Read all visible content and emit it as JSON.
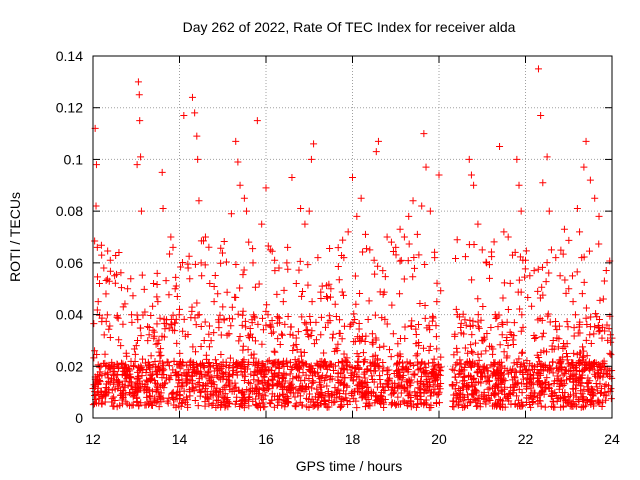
{
  "chart_data": {
    "type": "scatter",
    "title": "Day 262 of 2022, Rate Of TEC Index for receiver alda",
    "xlabel": "GPS time / hours",
    "ylabel": "ROTI / TECUs",
    "xlim": [
      12,
      24
    ],
    "ylim": [
      0,
      0.14
    ],
    "xticks": [
      12,
      14,
      16,
      18,
      20,
      22,
      24
    ],
    "xtick_labels": [
      "12",
      "14",
      "16",
      "18",
      "20",
      "22",
      "24"
    ],
    "yticks": [
      0,
      0.02,
      0.04,
      0.06,
      0.08,
      0.1,
      0.12,
      0.14
    ],
    "ytick_labels": [
      "0",
      "0.02",
      "0.04",
      "0.06",
      "0.08",
      "0.1",
      "0.12",
      "0.14"
    ],
    "grid": true,
    "marker": "+",
    "color": "#ff0000",
    "gap": [
      20.05,
      20.3
    ],
    "points": [
      [
        12.05,
        0.112
      ],
      [
        12.08,
        0.098
      ],
      [
        12.07,
        0.082
      ],
      [
        12.1,
        0.066
      ],
      [
        12.15,
        0.052
      ],
      [
        12.12,
        0.045
      ],
      [
        12.2,
        0.063
      ],
      [
        12.25,
        0.058
      ],
      [
        12.3,
        0.048
      ],
      [
        12.4,
        0.061
      ],
      [
        12.5,
        0.055
      ],
      [
        12.6,
        0.064
      ],
      [
        12.7,
        0.043
      ],
      [
        12.8,
        0.05
      ],
      [
        12.9,
        0.037
      ],
      [
        13.0,
        0.028
      ],
      [
        13.05,
        0.13
      ],
      [
        13.07,
        0.125
      ],
      [
        13.08,
        0.115
      ],
      [
        13.1,
        0.101
      ],
      [
        13.02,
        0.098
      ],
      [
        13.12,
        0.08
      ],
      [
        13.2,
        0.041
      ],
      [
        13.3,
        0.035
      ],
      [
        13.4,
        0.052
      ],
      [
        13.5,
        0.045
      ],
      [
        13.6,
        0.095
      ],
      [
        13.62,
        0.081
      ],
      [
        13.7,
        0.038
      ],
      [
        13.8,
        0.07
      ],
      [
        13.85,
        0.066
      ],
      [
        13.9,
        0.05
      ],
      [
        13.95,
        0.047
      ],
      [
        14.0,
        0.042
      ],
      [
        14.1,
        0.117
      ],
      [
        14.2,
        0.058
      ],
      [
        14.3,
        0.124
      ],
      [
        14.35,
        0.118
      ],
      [
        14.4,
        0.109
      ],
      [
        14.42,
        0.1
      ],
      [
        14.45,
        0.084
      ],
      [
        14.5,
        0.06
      ],
      [
        14.6,
        0.07
      ],
      [
        14.7,
        0.052
      ],
      [
        14.8,
        0.045
      ],
      [
        14.9,
        0.038
      ],
      [
        15.0,
        0.043
      ],
      [
        15.1,
        0.032
      ],
      [
        15.2,
        0.079
      ],
      [
        15.3,
        0.107
      ],
      [
        15.35,
        0.099
      ],
      [
        15.4,
        0.09
      ],
      [
        15.5,
        0.085
      ],
      [
        15.55,
        0.08
      ],
      [
        15.6,
        0.068
      ],
      [
        15.7,
        0.06
      ],
      [
        15.8,
        0.115
      ],
      [
        15.9,
        0.075
      ],
      [
        16.0,
        0.089
      ],
      [
        16.1,
        0.065
      ],
      [
        16.2,
        0.061
      ],
      [
        16.3,
        0.058
      ],
      [
        16.4,
        0.045
      ],
      [
        16.5,
        0.066
      ],
      [
        16.6,
        0.093
      ],
      [
        16.7,
        0.052
      ],
      [
        16.8,
        0.081
      ],
      [
        16.9,
        0.075
      ],
      [
        17.0,
        0.08
      ],
      [
        17.05,
        0.1
      ],
      [
        17.1,
        0.106
      ],
      [
        17.2,
        0.062
      ],
      [
        17.3,
        0.051
      ],
      [
        17.4,
        0.047
      ],
      [
        17.5,
        0.05
      ],
      [
        17.6,
        0.044
      ],
      [
        17.7,
        0.038
      ],
      [
        17.8,
        0.062
      ],
      [
        17.9,
        0.072
      ],
      [
        18.0,
        0.093
      ],
      [
        18.1,
        0.078
      ],
      [
        18.2,
        0.085
      ],
      [
        18.3,
        0.071
      ],
      [
        18.4,
        0.065
      ],
      [
        18.5,
        0.061
      ],
      [
        18.55,
        0.103
      ],
      [
        18.6,
        0.107
      ],
      [
        18.7,
        0.057
      ],
      [
        18.8,
        0.07
      ],
      [
        18.9,
        0.068
      ],
      [
        19.0,
        0.066
      ],
      [
        19.1,
        0.073
      ],
      [
        19.2,
        0.07
      ],
      [
        19.3,
        0.078
      ],
      [
        19.4,
        0.084
      ],
      [
        19.5,
        0.071
      ],
      [
        19.6,
        0.082
      ],
      [
        19.65,
        0.11
      ],
      [
        19.7,
        0.097
      ],
      [
        19.8,
        0.08
      ],
      [
        19.9,
        0.062
      ],
      [
        19.95,
        0.045
      ],
      [
        20.0,
        0.094
      ],
      [
        20.4,
        0.042
      ],
      [
        20.5,
        0.035
      ],
      [
        20.6,
        0.038
      ],
      [
        20.7,
        0.1
      ],
      [
        20.75,
        0.094
      ],
      [
        20.8,
        0.09
      ],
      [
        20.9,
        0.075
      ],
      [
        21.0,
        0.065
      ],
      [
        21.1,
        0.06
      ],
      [
        21.2,
        0.035
      ],
      [
        21.3,
        0.04
      ],
      [
        21.4,
        0.105
      ],
      [
        21.5,
        0.072
      ],
      [
        21.6,
        0.07
      ],
      [
        21.7,
        0.063
      ],
      [
        21.8,
        0.1
      ],
      [
        21.85,
        0.09
      ],
      [
        21.9,
        0.08
      ],
      [
        22.0,
        0.061
      ],
      [
        22.1,
        0.055
      ],
      [
        22.2,
        0.057
      ],
      [
        22.3,
        0.135
      ],
      [
        22.35,
        0.117
      ],
      [
        22.4,
        0.091
      ],
      [
        22.5,
        0.101
      ],
      [
        22.55,
        0.08
      ],
      [
        22.6,
        0.065
      ],
      [
        22.7,
        0.062
      ],
      [
        22.8,
        0.055
      ],
      [
        22.9,
        0.073
      ],
      [
        23.0,
        0.05
      ],
      [
        23.1,
        0.045
      ],
      [
        23.2,
        0.081
      ],
      [
        23.25,
        0.072
      ],
      [
        23.3,
        0.062
      ],
      [
        23.35,
        0.097
      ],
      [
        23.4,
        0.107
      ],
      [
        23.5,
        0.092
      ],
      [
        23.6,
        0.085
      ],
      [
        23.7,
        0.078
      ],
      [
        23.8,
        0.046
      ],
      [
        23.9,
        0.03
      ],
      [
        23.95,
        0.025
      ]
    ]
  }
}
